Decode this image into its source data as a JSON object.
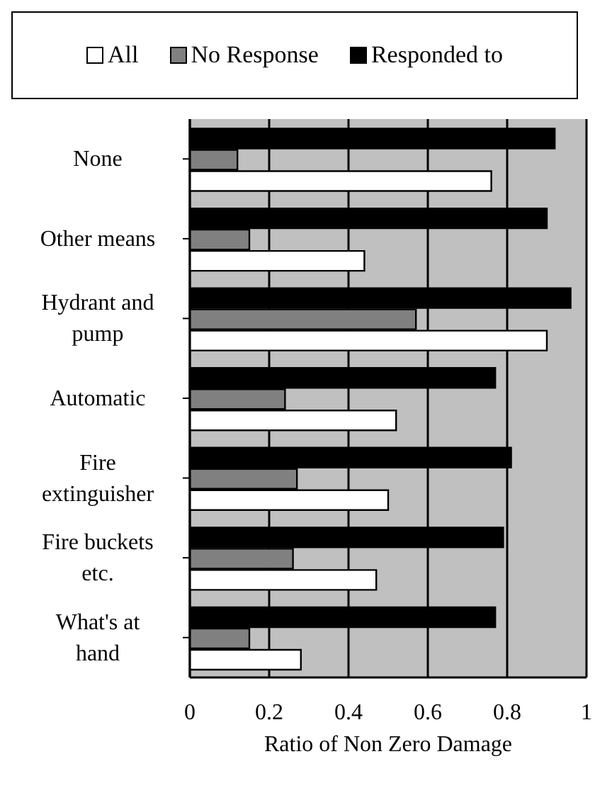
{
  "chart_data": {
    "type": "bar",
    "orientation": "horizontal",
    "xlabel": "Ratio of Non Zero Damage",
    "categories": [
      "None",
      "Other means",
      "Hydrant and pump",
      "Automatic",
      "Fire extinguisher",
      "Fire buckets etc.",
      "What's at hand"
    ],
    "series": [
      {
        "name": "All",
        "color": "#ffffff",
        "values": [
          0.76,
          0.44,
          0.9,
          0.52,
          0.5,
          0.47,
          0.28
        ]
      },
      {
        "name": "No Response",
        "color": "#808080",
        "values": [
          0.12,
          0.15,
          0.57,
          0.24,
          0.27,
          0.26,
          0.15
        ]
      },
      {
        "name": "Responded to",
        "color": "#000000",
        "values": [
          0.92,
          0.9,
          0.96,
          0.77,
          0.81,
          0.79,
          0.77
        ]
      }
    ],
    "xlim": [
      0,
      1
    ],
    "xticks": [
      0,
      0.2,
      0.4,
      0.6,
      0.8,
      1
    ],
    "grid": "x",
    "legend": "top"
  }
}
